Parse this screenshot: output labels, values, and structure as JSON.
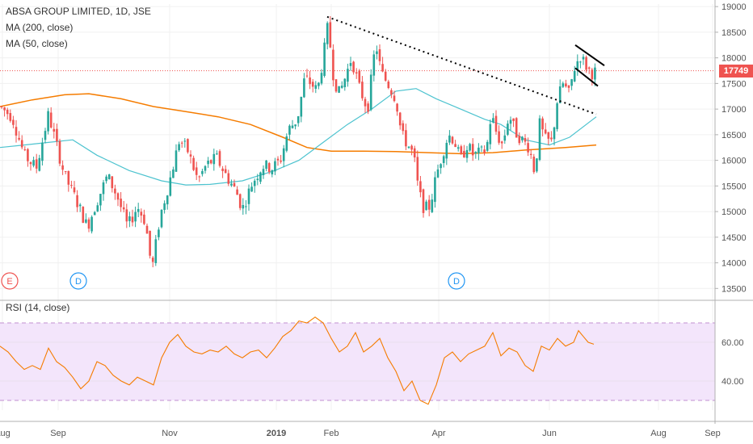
{
  "chart_data": [
    {
      "type": "candlestick",
      "title": "ABSA GROUP LIMITED, 1D, JSE",
      "indicators": [
        "MA (200, close)",
        "MA (50, close)"
      ],
      "last_price": "17749",
      "ylim": [
        13300,
        19050
      ],
      "y_ticks": [
        "19000",
        "18500",
        "18000",
        "17500",
        "17000",
        "16500",
        "16000",
        "15500",
        "15000",
        "14500",
        "14000",
        "13500"
      ],
      "x_ticks": [
        "Aug",
        "Sep",
        "Nov",
        "2019",
        "Feb",
        "Apr",
        "Jun",
        "Aug",
        "Sep"
      ],
      "price_path": [
        [
          0,
          17050
        ],
        [
          15,
          16850
        ],
        [
          30,
          16100
        ],
        [
          45,
          15850
        ],
        [
          60,
          16900
        ],
        [
          70,
          16300
        ],
        [
          80,
          15700
        ],
        [
          95,
          15200
        ],
        [
          108,
          14700
        ],
        [
          120,
          15200
        ],
        [
          133,
          15700
        ],
        [
          145,
          15300
        ],
        [
          158,
          14700
        ],
        [
          170,
          15100
        ],
        [
          180,
          14800
        ],
        [
          188,
          13850
        ],
        [
          198,
          14900
        ],
        [
          210,
          15600
        ],
        [
          222,
          16400
        ],
        [
          232,
          16200
        ],
        [
          245,
          15600
        ],
        [
          255,
          15900
        ],
        [
          268,
          16050
        ],
        [
          280,
          15700
        ],
        [
          292,
          15400
        ],
        [
          300,
          15050
        ],
        [
          312,
          15550
        ],
        [
          325,
          15900
        ],
        [
          337,
          15850
        ],
        [
          347,
          16000
        ],
        [
          357,
          16600
        ],
        [
          368,
          16800
        ],
        [
          377,
          17600
        ],
        [
          385,
          17500
        ],
        [
          393,
          17350
        ],
        [
          400,
          18000
        ],
        [
          406,
          18650
        ],
        [
          413,
          17600
        ],
        [
          420,
          17300
        ],
        [
          428,
          17650
        ],
        [
          435,
          18000
        ],
        [
          445,
          17400
        ],
        [
          455,
          17000
        ],
        [
          465,
          18300
        ],
        [
          472,
          17700
        ],
        [
          480,
          17500
        ],
        [
          490,
          17200
        ],
        [
          497,
          16500
        ],
        [
          505,
          16300
        ],
        [
          512,
          16100
        ],
        [
          518,
          15400
        ],
        [
          525,
          15050
        ],
        [
          532,
          15100
        ],
        [
          540,
          15700
        ],
        [
          548,
          16150
        ],
        [
          555,
          16500
        ],
        [
          562,
          16400
        ],
        [
          570,
          16000
        ],
        [
          578,
          16300
        ],
        [
          586,
          16100
        ],
        [
          595,
          16150
        ],
        [
          602,
          16200
        ],
        [
          608,
          16900
        ],
        [
          615,
          16500
        ],
        [
          622,
          16300
        ],
        [
          630,
          16900
        ],
        [
          638,
          16550
        ],
        [
          646,
          16400
        ],
        [
          655,
          16250
        ],
        [
          662,
          15750
        ],
        [
          668,
          16700
        ],
        [
          675,
          16400
        ],
        [
          683,
          16350
        ],
        [
          690,
          17200
        ],
        [
          697,
          17500
        ],
        [
          704,
          17300
        ],
        [
          711,
          17800
        ],
        [
          718,
          18050
        ],
        [
          725,
          17850
        ],
        [
          732,
          17700
        ],
        [
          740,
          17750
        ]
      ],
      "ma200_path": [
        [
          0,
          17050
        ],
        [
          40,
          17180
        ],
        [
          80,
          17280
        ],
        [
          110,
          17300
        ],
        [
          150,
          17200
        ],
        [
          190,
          17050
        ],
        [
          230,
          16950
        ],
        [
          270,
          16850
        ],
        [
          310,
          16700
        ],
        [
          350,
          16450
        ],
        [
          380,
          16250
        ],
        [
          410,
          16180
        ],
        [
          450,
          16180
        ],
        [
          490,
          16170
        ],
        [
          530,
          16150
        ],
        [
          570,
          16130
        ],
        [
          610,
          16150
        ],
        [
          650,
          16200
        ],
        [
          700,
          16250
        ],
        [
          738,
          16300
        ]
      ],
      "ma50_path": [
        [
          0,
          16250
        ],
        [
          30,
          16300
        ],
        [
          60,
          16350
        ],
        [
          90,
          16400
        ],
        [
          120,
          16100
        ],
        [
          160,
          15800
        ],
        [
          200,
          15600
        ],
        [
          230,
          15520
        ],
        [
          260,
          15530
        ],
        [
          300,
          15600
        ],
        [
          340,
          15800
        ],
        [
          370,
          16000
        ],
        [
          400,
          16350
        ],
        [
          430,
          16700
        ],
        [
          460,
          17000
        ],
        [
          490,
          17350
        ],
        [
          515,
          17400
        ],
        [
          540,
          17200
        ],
        [
          570,
          17000
        ],
        [
          600,
          16800
        ],
        [
          620,
          16700
        ],
        [
          650,
          16400
        ],
        [
          680,
          16300
        ],
        [
          705,
          16450
        ],
        [
          738,
          16850
        ]
      ],
      "trendline": [
        [
          405,
          18800
        ],
        [
          738,
          16900
        ]
      ],
      "flag_upper": [
        [
          712,
          18250
        ],
        [
          748,
          17850
        ]
      ],
      "flag_lower": [
        [
          712,
          17800
        ],
        [
          740,
          17450
        ]
      ],
      "event_markers": [
        {
          "label": "E",
          "x": 12,
          "color": "#ef5350"
        },
        {
          "label": "D",
          "x": 97,
          "color": "#2196f3"
        },
        {
          "label": "D",
          "x": 565,
          "color": "#2196f3"
        }
      ],
      "series_colors": {
        "up": "#26a69a",
        "down": "#ef5350",
        "ma200": "#f57c00",
        "ma50": "#4dc3cf",
        "trend": "#000000"
      }
    },
    {
      "type": "line",
      "title": "RSI (14, close)",
      "ylim": [
        25,
        75
      ],
      "band": [
        30,
        70
      ],
      "y_ticks": [
        "60.00",
        "40.00"
      ],
      "y_tick_values": [
        60,
        40
      ],
      "values_path": [
        [
          0,
          58
        ],
        [
          10,
          55
        ],
        [
          20,
          50
        ],
        [
          30,
          46
        ],
        [
          40,
          48
        ],
        [
          50,
          46
        ],
        [
          60,
          57
        ],
        [
          70,
          50
        ],
        [
          80,
          47
        ],
        [
          90,
          42
        ],
        [
          100,
          36
        ],
        [
          110,
          40
        ],
        [
          120,
          50
        ],
        [
          130,
          48
        ],
        [
          140,
          43
        ],
        [
          150,
          40
        ],
        [
          160,
          38
        ],
        [
          170,
          42
        ],
        [
          180,
          40
        ],
        [
          190,
          38
        ],
        [
          200,
          52
        ],
        [
          210,
          60
        ],
        [
          220,
          64
        ],
        [
          230,
          58
        ],
        [
          240,
          55
        ],
        [
          250,
          54
        ],
        [
          260,
          56
        ],
        [
          270,
          55
        ],
        [
          280,
          58
        ],
        [
          290,
          54
        ],
        [
          300,
          52
        ],
        [
          310,
          55
        ],
        [
          320,
          56
        ],
        [
          330,
          52
        ],
        [
          340,
          57
        ],
        [
          350,
          63
        ],
        [
          360,
          66
        ],
        [
          370,
          71
        ],
        [
          380,
          70
        ],
        [
          390,
          73
        ],
        [
          400,
          70
        ],
        [
          410,
          62
        ],
        [
          420,
          55
        ],
        [
          430,
          58
        ],
        [
          440,
          65
        ],
        [
          450,
          55
        ],
        [
          460,
          58
        ],
        [
          470,
          62
        ],
        [
          480,
          52
        ],
        [
          490,
          45
        ],
        [
          500,
          35
        ],
        [
          510,
          40
        ],
        [
          520,
          30
        ],
        [
          530,
          28
        ],
        [
          540,
          38
        ],
        [
          550,
          52
        ],
        [
          560,
          55
        ],
        [
          570,
          50
        ],
        [
          580,
          54
        ],
        [
          590,
          56
        ],
        [
          600,
          58
        ],
        [
          610,
          65
        ],
        [
          620,
          53
        ],
        [
          630,
          57
        ],
        [
          640,
          55
        ],
        [
          650,
          48
        ],
        [
          660,
          45
        ],
        [
          670,
          58
        ],
        [
          680,
          56
        ],
        [
          690,
          62
        ],
        [
          700,
          58
        ],
        [
          710,
          60
        ],
        [
          716,
          66
        ],
        [
          722,
          63
        ],
        [
          728,
          60
        ],
        [
          735,
          59
        ]
      ],
      "color": "#f57c00",
      "band_color": "#f3e5fb"
    }
  ]
}
